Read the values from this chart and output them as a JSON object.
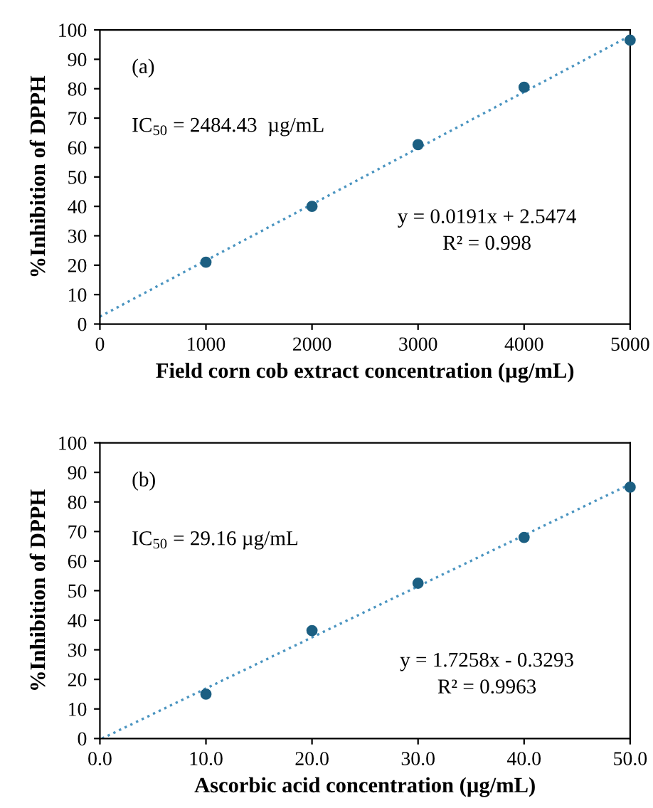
{
  "chart_data": [
    {
      "type": "scatter",
      "xlabel": "Field corn cob extract concentration (µg/mL)",
      "ylabel": "%Inhibition of DPPH",
      "x": [
        1000,
        2000,
        3000,
        4000,
        5000
      ],
      "xlim": [
        0,
        5000
      ],
      "xticks": [
        0,
        1000,
        2000,
        3000,
        4000,
        5000
      ],
      "ylim": [
        0,
        100
      ],
      "yticks": [
        0,
        10,
        20,
        30,
        40,
        50,
        60,
        70,
        80,
        90,
        100
      ],
      "series": [
        {
          "color": "#1c5f82",
          "marker": "circle",
          "values": [
            21,
            40,
            61,
            80.5,
            96.5
          ]
        },
        {
          "type": "line",
          "color": "#4a94c0",
          "line_style": "dotted",
          "marker": "none",
          "x": [
            0,
            5000
          ],
          "values": [
            2.5,
            98
          ]
        }
      ],
      "annotations": [
        "(a)",
        "IC$_{50}$ = 2484.43  µg/mL",
        "y = 0.0191x + 2.5474",
        "R² = 0.998"
      ]
    },
    {
      "type": "scatter",
      "xlabel": "Ascorbic acid concentration (µg/mL)",
      "ylabel": "%Inhibition of DPPH",
      "x": [
        10,
        20,
        30,
        40,
        50
      ],
      "xlim": [
        0,
        50
      ],
      "xticks": [
        {
          "value": 0,
          "label": "0.0"
        },
        {
          "value": 10,
          "label": "10.0"
        },
        {
          "value": 20,
          "label": "20.0"
        },
        {
          "value": 30,
          "label": "30.0"
        },
        {
          "value": 40,
          "label": "40.0"
        },
        {
          "value": 50,
          "label": "50.0"
        }
      ],
      "ylim": [
        0,
        100
      ],
      "yticks": [
        0,
        10,
        20,
        30,
        40,
        50,
        60,
        70,
        80,
        90,
        100
      ],
      "series": [
        {
          "color": "#1c5f82",
          "marker": "circle",
          "values": [
            15,
            36.5,
            52.5,
            68,
            85
          ]
        },
        {
          "type": "line",
          "color": "#4a94c0",
          "line_style": "dotted",
          "marker": "none",
          "x": [
            0.2,
            50
          ],
          "values": [
            0,
            86
          ]
        }
      ],
      "annotations": [
        "(b)",
        "IC$_{50}$ = 29.16 µg/mL",
        "y = 1.7258x - 0.3293",
        "R² = 0.9963"
      ]
    }
  ]
}
